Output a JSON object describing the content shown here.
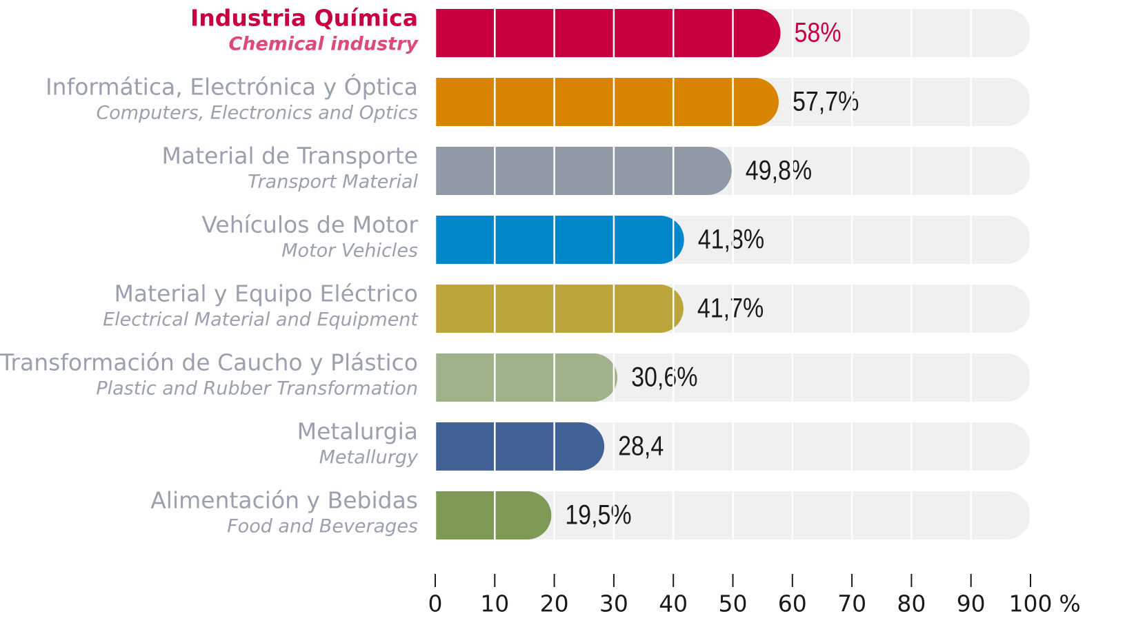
{
  "chart_data": {
    "type": "bar",
    "categories": [
      "Industria Química",
      "Informática, Electrónica y Óptica",
      "Material de Transporte",
      "Vehículos de Motor",
      "Material y Equipo Eléctrico",
      "Transformación de Caucho y Plástico",
      "Metalurgia",
      "Alimentación y Bebidas"
    ],
    "categories_en": [
      "Chemical industry",
      "Computers, Electronics and Optics",
      "Transport Material",
      "Motor Vehicles",
      "Electrical Material and Equipment",
      "Plastic and Rubber Transformation",
      "Metallurgy",
      "Food and Beverages"
    ],
    "values": [
      58,
      57.7,
      49.8,
      41.8,
      41.7,
      30.6,
      28.4,
      19.5
    ],
    "value_labels": [
      "58%",
      "57,7%",
      "49,8%",
      "41,8%",
      "41,7%",
      "30,6%",
      "28,4",
      "19,5%"
    ],
    "colors": [
      "#c8003f",
      "#d88400",
      "#9199a7",
      "#0287cb",
      "#bba53a",
      "#a0b289",
      "#426196",
      "#7e9a56"
    ],
    "highlight_index": 0,
    "highlight_color": "#c8003f",
    "highlight_color_en": "#dc4a7a",
    "xlim": [
      0,
      100
    ],
    "xticks": [
      0,
      10,
      20,
      30,
      40,
      50,
      60,
      70,
      80,
      90,
      100
    ],
    "xunit": "%",
    "grid": true
  }
}
